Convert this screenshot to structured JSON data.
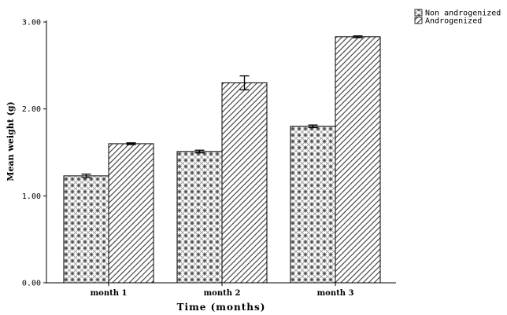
{
  "chart_data": {
    "type": "bar",
    "categories": [
      "month 1",
      "month 2",
      "month 3"
    ],
    "series": [
      {
        "name": "Non androgenized",
        "values": [
          1.23,
          1.51,
          1.8
        ],
        "error": [
          0.02,
          0.015,
          0.015
        ],
        "pattern": "crosshatch-dots"
      },
      {
        "name": "Androgenized",
        "values": [
          1.6,
          2.3,
          2.83
        ],
        "error": [
          0.01,
          0.08,
          0.01
        ],
        "pattern": "diagonal-lines"
      }
    ],
    "xlabel": "Time (months)",
    "ylabel": "Mean weight (g)",
    "ylim": [
      0,
      3.0
    ],
    "yticks": [
      "0.00",
      "1.00",
      "2.00",
      "3.00"
    ],
    "ytick_values": [
      0,
      1,
      2,
      3
    ],
    "grid": false,
    "legend_position": "top-right",
    "colors": {
      "bar_fill": "#ffffff",
      "pattern": "#444444",
      "stroke": "#000000",
      "axis": "#000000"
    }
  }
}
